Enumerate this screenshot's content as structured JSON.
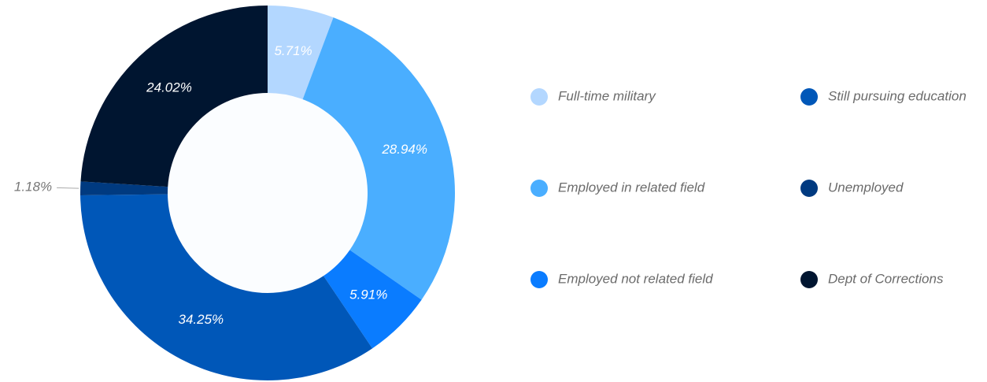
{
  "chart_data": {
    "type": "donut",
    "categories": [
      "Full-time military",
      "Employed in related field",
      "Employed not related field",
      "Still pursuing education",
      "Unemployed",
      "Dept of Corrections"
    ],
    "values": [
      5.71,
      28.94,
      5.91,
      34.25,
      1.18,
      24.02
    ],
    "value_labels": [
      "5.71%",
      "28.94%",
      "5.91%",
      "34.25%",
      "1.18%",
      "24.02%"
    ],
    "colors": [
      "#b3d7ff",
      "#4aaeff",
      "#0a7cff",
      "#0057b8",
      "#003a80",
      "#001530"
    ],
    "legend": "right"
  }
}
